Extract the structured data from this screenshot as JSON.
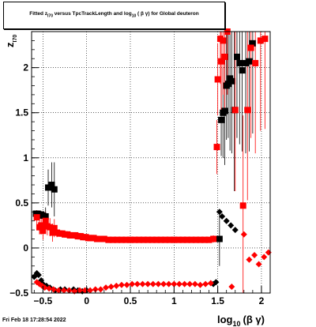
{
  "title_parts": {
    "pre": "Fitted  z",
    "pre_sub": "I70",
    "mid": " versus TpcTrackLength and log",
    "mid_sub": "10",
    "post": " ( β γ) for Global deuteron"
  },
  "footer": {
    "timestamp": "Fri Feb 18 17:28:54 2022"
  },
  "colors": {
    "series_black": "#000000",
    "series_red": "#ff0000",
    "grid": "#000000"
  },
  "chart_data": {
    "type": "scatter",
    "xlabel_main": "log",
    "xlabel_sub": "10",
    "xlabel_tail": "(β γ)",
    "ylabel_main": "z",
    "ylabel_sub": "I70",
    "xlim": [
      -0.63,
      2.1
    ],
    "ylim": [
      -0.5,
      2.4
    ],
    "xticks": [
      -0.5,
      0,
      0.5,
      1,
      1.5,
      2
    ],
    "xtick_labels": [
      "−0.5",
      "0",
      "0.5",
      "1",
      "1.5",
      "2"
    ],
    "yticks": [
      -0.5,
      0,
      0.5,
      1,
      1.5,
      2
    ],
    "ytick_labels": [
      "−0.5",
      "0",
      "0.5",
      "1",
      "1.5",
      "2"
    ],
    "grid": true,
    "series": [
      {
        "color": "#000000",
        "marker": "square",
        "points": [
          [
            -0.58,
            0.38,
            0.03
          ],
          [
            -0.56,
            0.38,
            0.03
          ],
          [
            -0.54,
            0.36,
            0.04
          ],
          [
            -0.52,
            0.37,
            0.04
          ],
          [
            -0.5,
            0.36,
            0.05
          ],
          [
            -0.47,
            0.35,
            0.1
          ],
          [
            -0.44,
            0.67,
            0.2
          ],
          [
            -0.4,
            0.7,
            0.25
          ],
          [
            -0.37,
            0.65,
            0.3
          ],
          [
            1.52,
            0.1,
            0.3
          ],
          [
            1.54,
            1.42,
            0.4
          ],
          [
            1.56,
            1.5,
            0.5
          ],
          [
            1.58,
            1.52,
            0.6
          ],
          [
            1.6,
            1.8,
            0.6
          ],
          [
            1.62,
            1.82,
            0.6
          ],
          [
            1.64,
            1.88,
            0.8
          ],
          [
            1.66,
            1.85,
            0.8
          ],
          [
            1.69,
            1.53,
            0.9
          ],
          [
            1.72,
            2.12,
            0.9
          ],
          [
            1.75,
            2.05,
            0.9
          ],
          [
            1.78,
            1.97,
            0.9
          ],
          [
            1.82,
            2.05,
            1.0
          ],
          [
            1.86,
            2.07,
            1.0
          ],
          [
            1.9,
            2.27,
            1.0
          ]
        ]
      },
      {
        "color": "#000000",
        "marker": "diamond",
        "points": [
          [
            -0.6,
            -0.32
          ],
          [
            -0.57,
            -0.28
          ],
          [
            -0.55,
            -0.3
          ],
          [
            -0.52,
            -0.36
          ],
          [
            -0.5,
            -0.4
          ],
          [
            -0.46,
            -0.42
          ],
          [
            -0.42,
            -0.44
          ],
          [
            -0.36,
            -0.47
          ],
          [
            -0.3,
            -0.46
          ],
          [
            -0.25,
            -0.46
          ],
          [
            -0.2,
            -0.47
          ],
          [
            -0.15,
            -0.46
          ],
          [
            -0.1,
            -0.47
          ],
          [
            -0.05,
            -0.48
          ],
          [
            0.0,
            -0.47
          ],
          [
            1.45,
            -0.4
          ],
          [
            1.48,
            -0.38
          ],
          [
            1.52,
            0.4
          ],
          [
            1.55,
            0.35
          ],
          [
            1.6,
            0.3
          ],
          [
            1.65,
            0.25
          ],
          [
            1.7,
            0.2
          ]
        ]
      },
      {
        "color": "#ff0000",
        "marker": "square",
        "points": [
          [
            -0.57,
            0.34,
            0.08
          ],
          [
            -0.54,
            0.23,
            0.08
          ],
          [
            -0.52,
            0.25,
            0.1
          ],
          [
            -0.5,
            0.19,
            0.1
          ],
          [
            -0.47,
            0.3,
            0.1
          ],
          [
            -0.45,
            0.24,
            0.1
          ],
          [
            -0.42,
            0.23,
            0.1
          ],
          [
            -0.39,
            0.17,
            0.1
          ],
          [
            -0.37,
            0.22,
            0.1
          ],
          [
            -0.34,
            0.17,
            0.05
          ],
          [
            -0.31,
            0.16,
            0.03
          ],
          [
            -0.28,
            0.16,
            0.02
          ],
          [
            -0.25,
            0.15,
            0.02
          ],
          [
            -0.22,
            0.15,
            0.02
          ],
          [
            -0.19,
            0.14,
            0.02
          ],
          [
            -0.16,
            0.14,
            0.02
          ],
          [
            -0.13,
            0.14,
            0.02
          ],
          [
            -0.1,
            0.13,
            0.02
          ],
          [
            -0.07,
            0.13,
            0.02
          ],
          [
            -0.04,
            0.12,
            0.02
          ],
          [
            -0.01,
            0.12,
            0.02
          ],
          [
            0.02,
            0.11,
            0.02
          ],
          [
            0.05,
            0.11,
            0.02
          ],
          [
            0.08,
            0.11,
            0.02
          ],
          [
            0.12,
            0.1,
            0.02
          ],
          [
            0.16,
            0.1,
            0.02
          ],
          [
            0.2,
            0.1,
            0.02
          ],
          [
            0.25,
            0.09,
            0.02
          ],
          [
            0.3,
            0.09,
            0.02
          ],
          [
            0.35,
            0.09,
            0.02
          ],
          [
            0.4,
            0.09,
            0.02
          ],
          [
            0.45,
            0.09,
            0.02
          ],
          [
            0.5,
            0.09,
            0.02
          ],
          [
            0.55,
            0.09,
            0.02
          ],
          [
            0.6,
            0.09,
            0.02
          ],
          [
            0.65,
            0.09,
            0.02
          ],
          [
            0.7,
            0.09,
            0.02
          ],
          [
            0.75,
            0.09,
            0.02
          ],
          [
            0.8,
            0.09,
            0.02
          ],
          [
            0.85,
            0.09,
            0.02
          ],
          [
            0.9,
            0.09,
            0.02
          ],
          [
            0.95,
            0.09,
            0.02
          ],
          [
            1.0,
            0.09,
            0.02
          ],
          [
            1.05,
            0.09,
            0.02
          ],
          [
            1.1,
            0.09,
            0.02
          ],
          [
            1.15,
            0.09,
            0.02
          ],
          [
            1.2,
            0.09,
            0.02
          ],
          [
            1.25,
            0.09,
            0.02
          ],
          [
            1.3,
            0.09,
            0.02
          ],
          [
            1.35,
            0.09,
            0.02
          ],
          [
            1.4,
            0.09,
            0.03
          ],
          [
            1.45,
            0.1,
            0.04
          ],
          [
            1.49,
            1.12,
            0.3
          ],
          [
            1.5,
            1.87,
            0.4
          ],
          [
            1.53,
            2.32,
            0.5
          ],
          [
            1.56,
            2.3,
            0.6
          ],
          [
            1.58,
            2.12,
            0.6
          ],
          [
            1.54,
            2.07,
            0.6
          ],
          [
            1.61,
            2.4,
            0.7
          ],
          [
            1.7,
            1.53,
            0.9
          ],
          [
            1.79,
            0.47,
            1.0
          ],
          [
            1.84,
            1.53,
            1.0
          ],
          [
            1.88,
            2.22,
            1.0
          ],
          [
            1.93,
            2.05,
            1.0
          ],
          [
            1.99,
            2.3,
            1.0
          ],
          [
            2.04,
            2.32,
            1.0
          ]
        ]
      },
      {
        "color": "#ff0000",
        "marker": "diamond",
        "points": [
          [
            -0.57,
            -0.38
          ],
          [
            -0.54,
            -0.4
          ],
          [
            -0.51,
            -0.42
          ],
          [
            -0.48,
            -0.44
          ],
          [
            -0.43,
            -0.45
          ],
          [
            -0.38,
            -0.46
          ],
          [
            -0.32,
            -0.47
          ],
          [
            -0.26,
            -0.47
          ],
          [
            -0.2,
            -0.47
          ],
          [
            -0.14,
            -0.48
          ],
          [
            -0.08,
            -0.47
          ],
          [
            -0.02,
            -0.47
          ],
          [
            0.04,
            -0.47
          ],
          [
            0.1,
            -0.46
          ],
          [
            0.16,
            -0.46
          ],
          [
            0.22,
            -0.44
          ],
          [
            0.28,
            -0.43
          ],
          [
            0.34,
            -0.42
          ],
          [
            0.4,
            -0.41
          ],
          [
            0.46,
            -0.41
          ],
          [
            0.52,
            -0.4
          ],
          [
            0.58,
            -0.4
          ],
          [
            0.64,
            -0.4
          ],
          [
            0.7,
            -0.4
          ],
          [
            0.76,
            -0.4
          ],
          [
            0.82,
            -0.4
          ],
          [
            0.88,
            -0.4
          ],
          [
            0.94,
            -0.4
          ],
          [
            1.0,
            -0.4
          ],
          [
            1.06,
            -0.4
          ],
          [
            1.12,
            -0.4
          ],
          [
            1.18,
            -0.4
          ],
          [
            1.24,
            -0.4
          ],
          [
            1.3,
            -0.41
          ],
          [
            1.36,
            -0.4
          ],
          [
            1.42,
            -0.39
          ],
          [
            1.66,
            -0.43
          ],
          [
            1.8,
            0.15
          ],
          [
            1.86,
            -0.13
          ],
          [
            1.92,
            -0.08
          ],
          [
            1.97,
            -0.18
          ],
          [
            2.03,
            -0.1
          ],
          [
            2.08,
            -0.05
          ]
        ]
      }
    ]
  }
}
